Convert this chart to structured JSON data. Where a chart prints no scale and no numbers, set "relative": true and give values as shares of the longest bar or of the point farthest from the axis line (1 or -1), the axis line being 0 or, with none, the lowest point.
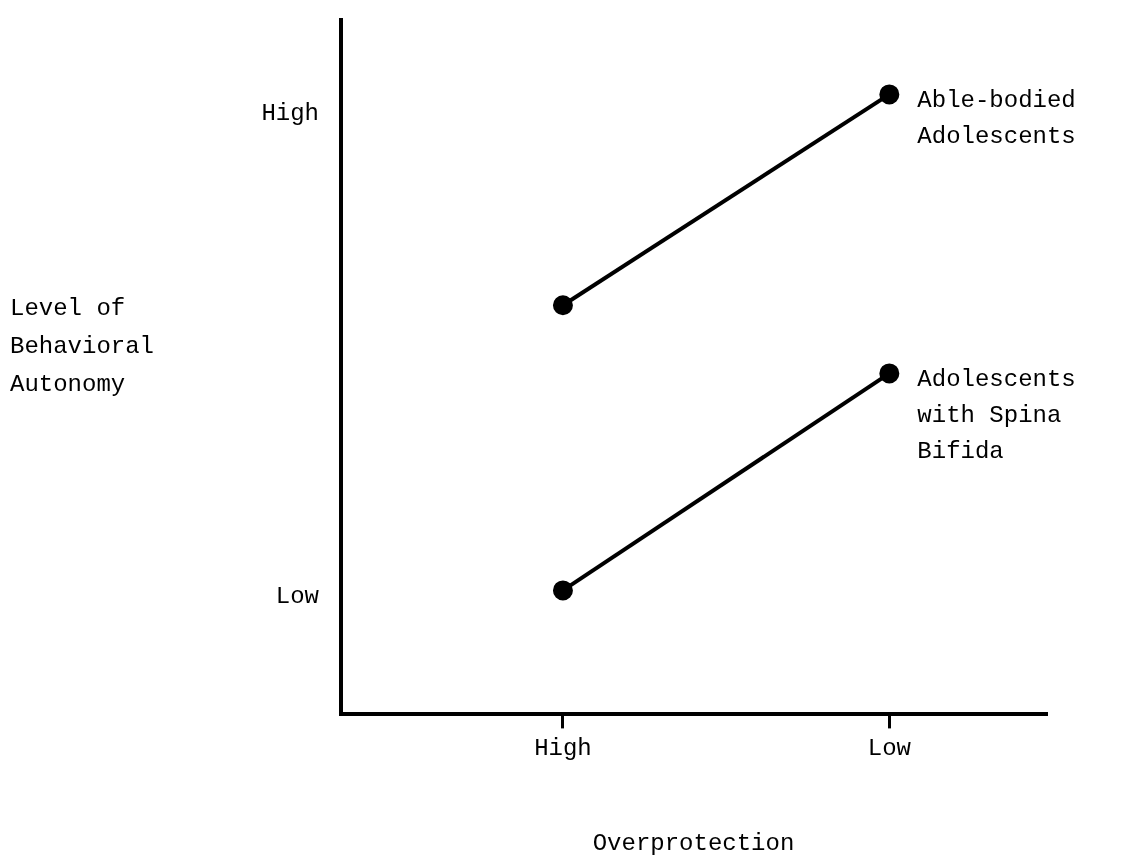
{
  "chart_data": {
    "type": "line",
    "relative": true,
    "xlabel": "Overprotection",
    "categories": [
      "High",
      "Low"
    ],
    "series": [
      {
        "name": "Able-bodied Adolescents",
        "color": "#000000",
        "values": [
          0.66,
          1
        ]
      },
      {
        "name": "Adolescents with Spina Bifida",
        "color": "#000000",
        "values": [
          0.2,
          0.55
        ]
      }
    ],
    "annotations": [
      "High",
      "Low",
      "Level of Behavioral Autonomy"
    ],
    "marker": "circle"
  }
}
